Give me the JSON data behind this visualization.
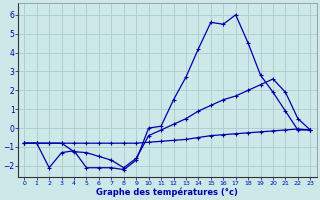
{
  "title": "Graphe des températures (°c)",
  "bg_color": "#cce8e8",
  "grid_color": "#aacccc",
  "line_color": "#0000aa",
  "xlim": [
    -0.5,
    23.5
  ],
  "ylim": [
    -2.6,
    6.6
  ],
  "xticks": [
    0,
    1,
    2,
    3,
    4,
    5,
    6,
    7,
    8,
    9,
    10,
    11,
    12,
    13,
    14,
    15,
    16,
    17,
    18,
    19,
    20,
    21,
    22,
    23
  ],
  "yticks": [
    -2,
    -1,
    0,
    1,
    2,
    3,
    4,
    5,
    6
  ],
  "line1_x": [
    0,
    1,
    2,
    3,
    4,
    5,
    6,
    7,
    8,
    9,
    10,
    11,
    12,
    13,
    14,
    15,
    16,
    17,
    18,
    19,
    20,
    21,
    22,
    23
  ],
  "line1_y": [
    -0.8,
    -0.8,
    -2.1,
    -1.3,
    -1.2,
    -2.1,
    -2.1,
    -2.1,
    -2.2,
    -1.7,
    0.0,
    0.1,
    1.5,
    2.7,
    4.2,
    5.6,
    5.5,
    6.0,
    4.5,
    2.8,
    1.9,
    0.9,
    -0.1,
    -0.1
  ],
  "line2_x": [
    0,
    1,
    2,
    3,
    4,
    5,
    6,
    7,
    8,
    9,
    10,
    11,
    12,
    13,
    14,
    15,
    16,
    17,
    18,
    19,
    20,
    21,
    22,
    23
  ],
  "line2_y": [
    -0.8,
    -0.8,
    -0.8,
    -0.8,
    -0.8,
    -0.8,
    -0.8,
    -0.8,
    -0.8,
    -0.8,
    -0.75,
    -0.7,
    -0.65,
    -0.6,
    -0.5,
    -0.4,
    -0.35,
    -0.3,
    -0.25,
    -0.2,
    -0.15,
    -0.1,
    -0.05,
    -0.1
  ],
  "line3_x": [
    0,
    1,
    2,
    3,
    4,
    5,
    6,
    7,
    8,
    9,
    10,
    11,
    12,
    13,
    14,
    15,
    16,
    17,
    18,
    19,
    20,
    21,
    22,
    23
  ],
  "line3_y": [
    -0.8,
    -0.8,
    -0.8,
    -0.8,
    -1.25,
    -1.3,
    -1.5,
    -1.7,
    -2.1,
    -1.6,
    -0.4,
    -0.1,
    0.2,
    0.5,
    0.9,
    1.2,
    1.5,
    1.7,
    2.0,
    2.3,
    2.6,
    1.9,
    0.5,
    -0.1
  ]
}
